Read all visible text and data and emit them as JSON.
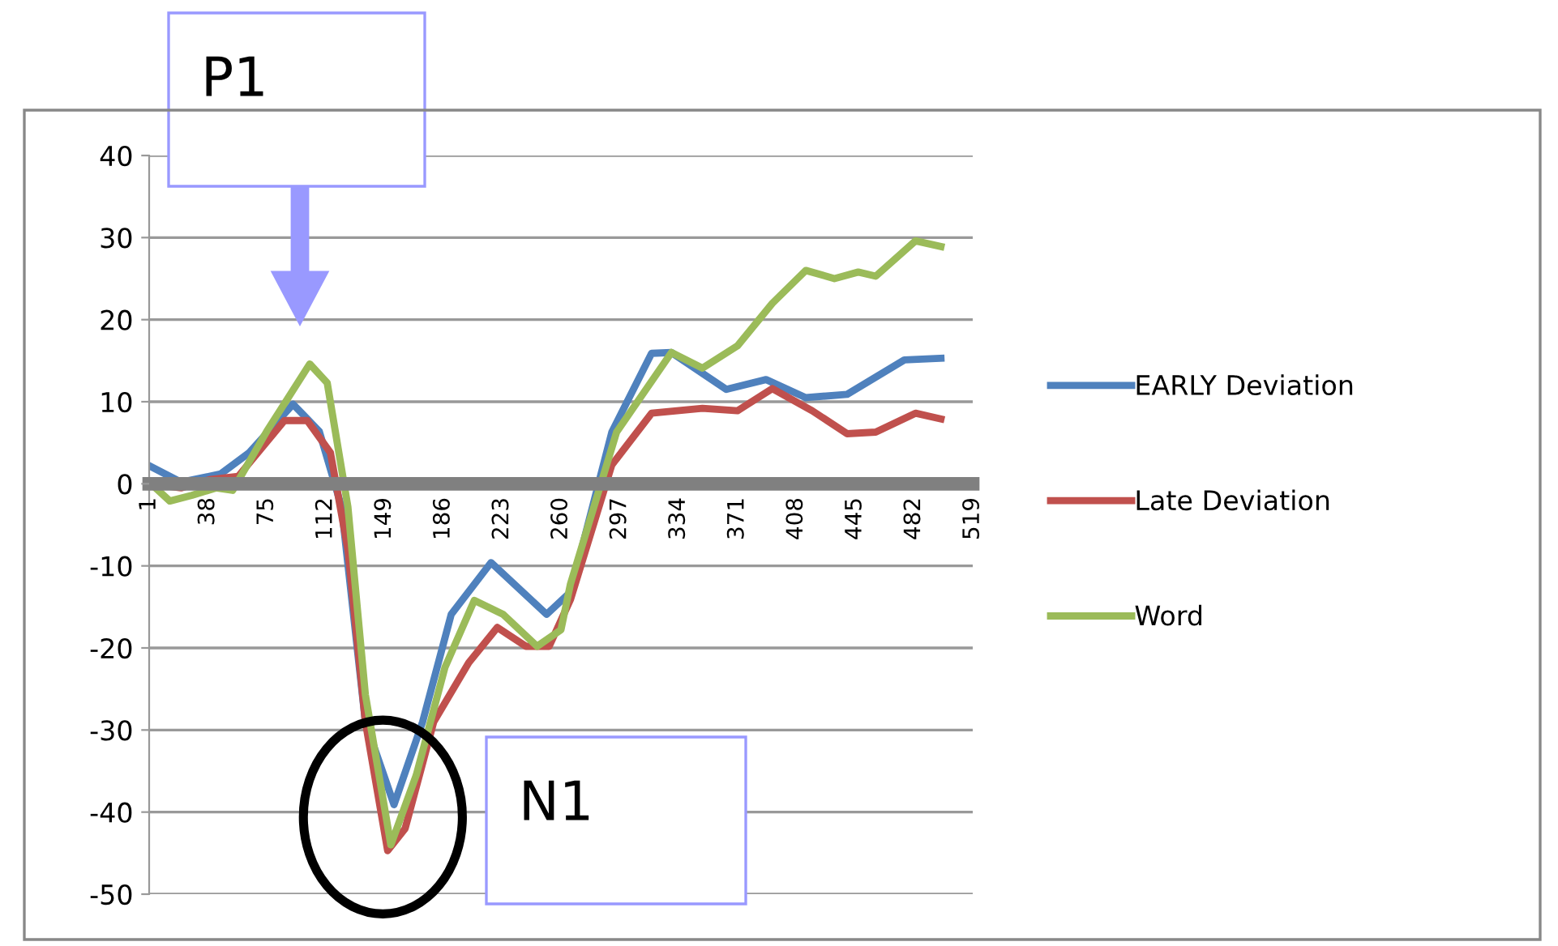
{
  "chart_data": {
    "type": "line",
    "ylim": [
      -50,
      40
    ],
    "yticks": [
      -50,
      -40,
      -30,
      -20,
      -10,
      0,
      10,
      20,
      30,
      40
    ],
    "xlim": [
      1,
      519
    ],
    "xticks": [
      1,
      38,
      75,
      112,
      149,
      186,
      223,
      260,
      297,
      334,
      371,
      408,
      445,
      482,
      519
    ],
    "grid": "y",
    "legend": "right",
    "marker": "none",
    "line_style": "solid",
    "series": [
      {
        "name": "EARLY Deviation",
        "color": "#4f81bd",
        "x": [
          1,
          21,
          46,
          64,
          91.5,
          108,
          122,
          137,
          155,
          173,
          191,
          216,
          251,
          266,
          292,
          317,
          329.5,
          364,
          389,
          414,
          440,
          476,
          499
        ],
        "values": [
          2.2,
          0.2,
          1.2,
          3.8,
          9.7,
          6.4,
          -2.8,
          -29,
          -39.1,
          -29,
          -15.9,
          -9.6,
          -15.9,
          -13.2,
          6.3,
          15.9,
          16,
          11.5,
          12.7,
          10.5,
          10.9,
          15.1,
          15.3
        ]
      },
      {
        "name": "Late Deviation",
        "color": "#c0504d",
        "x": [
          1,
          21,
          39,
          57,
          86,
          100.5,
          115,
          126,
          137,
          151,
          162,
          180,
          202,
          220,
          238,
          252.6,
          266,
          292,
          317,
          349,
          371,
          393,
          418,
          440,
          458,
          483,
          499
        ],
        "values": [
          0,
          -0.5,
          0.5,
          0.9,
          7.7,
          7.7,
          3.8,
          -8,
          -29,
          -44.7,
          -42,
          -29,
          -21.8,
          -17.5,
          -19.8,
          -19.8,
          -14.1,
          2.3,
          8.6,
          9.2,
          8.9,
          11.6,
          8.9,
          6.1,
          6.3,
          8.6,
          7.9
        ]
      },
      {
        "name": "Word",
        "color": "#9bbb59",
        "x": [
          1,
          14,
          28,
          43,
          53.5,
          75,
          102,
          113,
          126,
          137,
          153,
          169,
          187,
          205.5,
          223.6,
          245,
          260,
          266,
          295,
          329.5,
          349,
          371,
          393,
          414,
          432,
          447,
          458,
          483,
          499
        ],
        "values": [
          0.2,
          -2.1,
          -1.4,
          -0.5,
          -0.8,
          6.4,
          14.6,
          12.3,
          -2.8,
          -25.7,
          -44,
          -35.5,
          -22.4,
          -14.2,
          -15.9,
          -19.8,
          -17.8,
          -12.2,
          6.3,
          16,
          14.1,
          16.8,
          22,
          26,
          25,
          25.8,
          25.3,
          29.6,
          28.9
        ]
      }
    ],
    "annotations": [
      "P1",
      {
        "text": "N1",
        "x": 153,
        "y": -44
      }
    ]
  }
}
